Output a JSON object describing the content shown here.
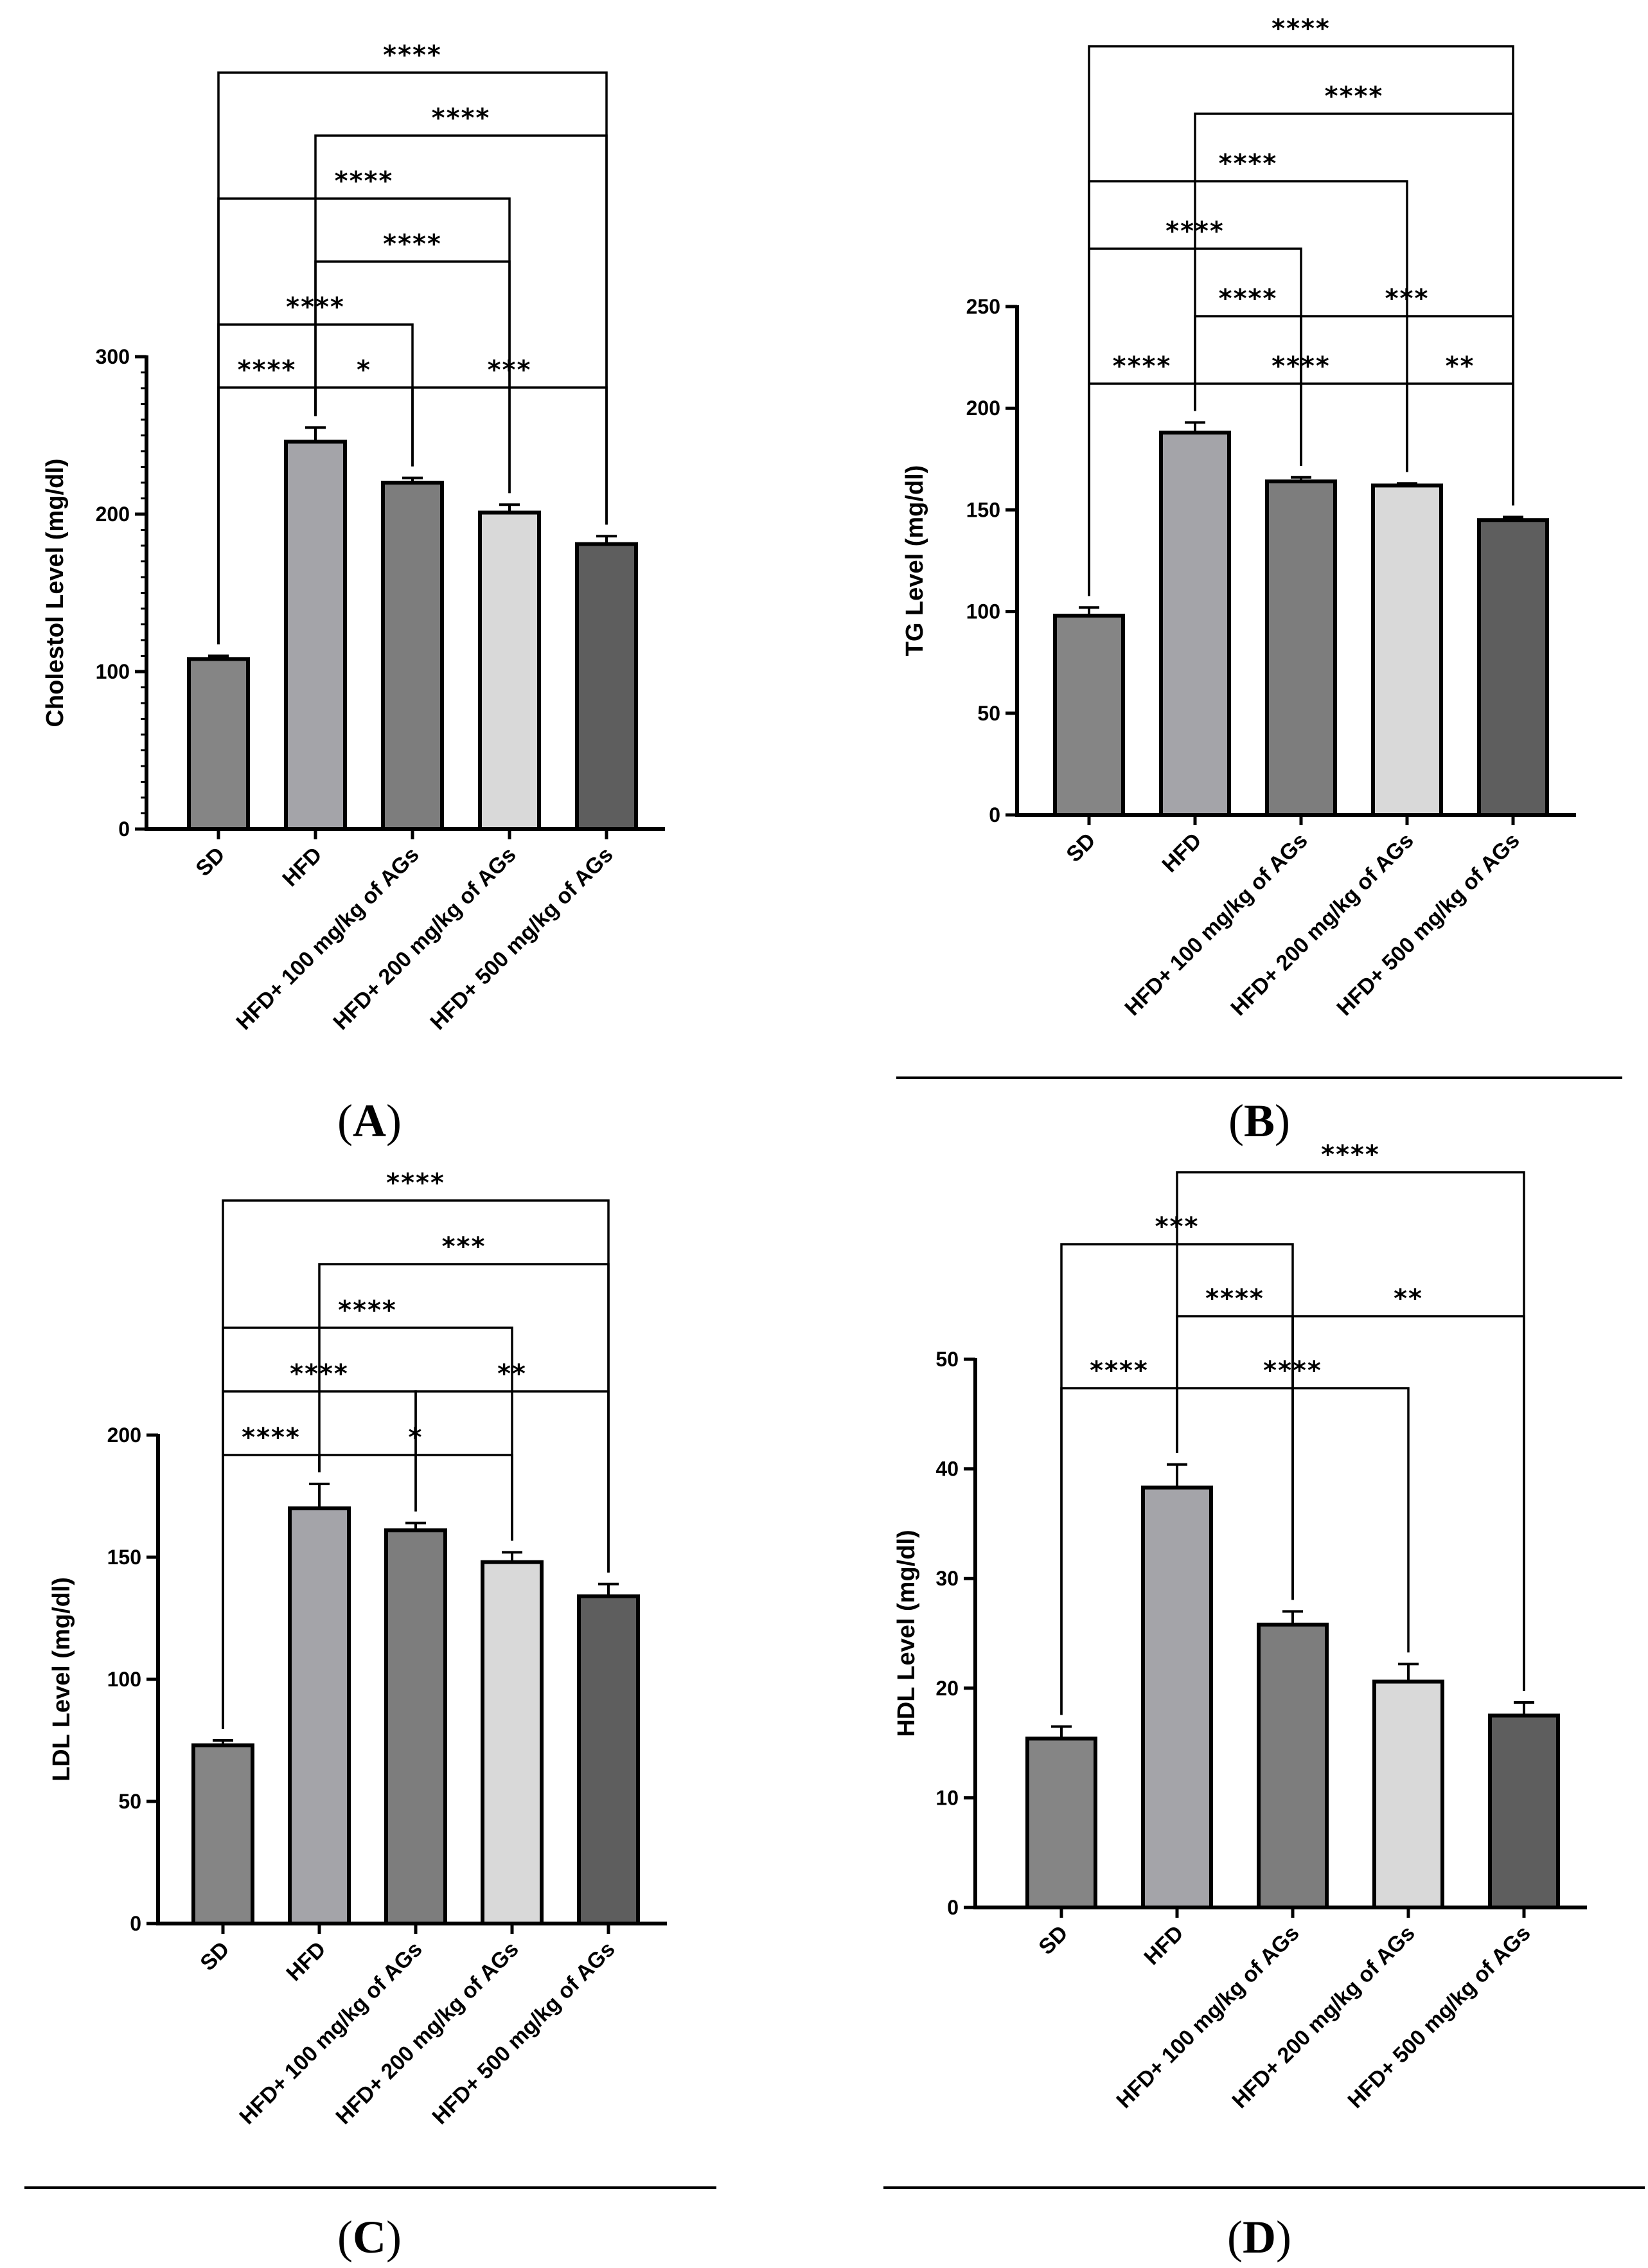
{
  "figure": {
    "panel_labels": [
      "A",
      "B",
      "C",
      "D"
    ]
  },
  "chart_data": [
    {
      "panel": "A",
      "type": "bar",
      "ylabel": "Cholestol Level (mg/dl)",
      "categories": [
        "SD",
        "HFD",
        "HFD+ 100 mg/kg of AGs",
        "HFD+ 200 mg/kg of AGs",
        "HFD+ 500 mg/kg of AGs"
      ],
      "values": [
        108,
        246,
        220,
        201,
        181
      ],
      "errors": [
        2,
        9,
        3,
        5,
        5
      ],
      "bar_colors": [
        "#858585",
        "#a4a4a9",
        "#7d7d7d",
        "#d9d9d9",
        "#5e5e5e"
      ],
      "ylim": [
        0,
        300
      ],
      "yticks": [
        0,
        100,
        200,
        300
      ],
      "minor_ticks": true,
      "comparisons": [
        {
          "from": 0,
          "to": 1,
          "label": "****"
        },
        {
          "from": 1,
          "to": 2,
          "label": "*"
        },
        {
          "from": 2,
          "to": 4,
          "label": "***"
        },
        {
          "from": 0,
          "to": 2,
          "label": "****"
        },
        {
          "from": 1,
          "to": 3,
          "label": "****"
        },
        {
          "from": 0,
          "to": 3,
          "label": "****"
        },
        {
          "from": 1,
          "to": 4,
          "label": "****"
        },
        {
          "from": 0,
          "to": 4,
          "label": "****"
        }
      ]
    },
    {
      "panel": "B",
      "type": "bar",
      "ylabel": "TG Level (mg/dl)",
      "categories": [
        "SD",
        "HFD",
        "HFD+ 100 mg/kg of AGs",
        "HFD+ 200 mg/kg of AGs",
        "HFD+ 500 mg/kg of AGs"
      ],
      "values": [
        98,
        188,
        164,
        162,
        145
      ],
      "errors": [
        4,
        5,
        2,
        1,
        1.5
      ],
      "bar_colors": [
        "#858585",
        "#a4a4a9",
        "#7d7d7d",
        "#d9d9d9",
        "#5e5e5e"
      ],
      "ylim": [
        0,
        250
      ],
      "yticks": [
        0,
        50,
        100,
        150,
        200,
        250
      ],
      "minor_ticks": false,
      "comparisons": [
        {
          "from": 0,
          "to": 1,
          "label": "****"
        },
        {
          "from": 1,
          "to": 3,
          "label": "****"
        },
        {
          "from": 3,
          "to": 4,
          "label": "**"
        },
        {
          "from": 1,
          "to": 2,
          "label": "****"
        },
        {
          "from": 2,
          "to": 4,
          "label": "***"
        },
        {
          "from": 0,
          "to": 2,
          "label": "****"
        },
        {
          "from": 0,
          "to": 3,
          "label": "****"
        },
        {
          "from": 1,
          "to": 4,
          "label": "****"
        },
        {
          "from": 0,
          "to": 4,
          "label": "****"
        }
      ]
    },
    {
      "panel": "C",
      "type": "bar",
      "ylabel": "LDL Level (mg/dl)",
      "categories": [
        "SD",
        "HFD",
        "HFD+ 100 mg/kg of AGs",
        "HFD+ 200 mg/kg of AGs",
        "HFD+ 500 mg/kg of AGs"
      ],
      "values": [
        73,
        170,
        161,
        148,
        134
      ],
      "errors": [
        2,
        10,
        3,
        4,
        5
      ],
      "bar_colors": [
        "#858585",
        "#a4a4a9",
        "#7d7d7d",
        "#d9d9d9",
        "#5e5e5e"
      ],
      "ylim": [
        0,
        200
      ],
      "yticks": [
        0,
        50,
        100,
        150,
        200
      ],
      "minor_ticks": false,
      "comparisons": [
        {
          "from": 0,
          "to": 1,
          "label": "****"
        },
        {
          "from": 1,
          "to": 3,
          "label": "*"
        },
        {
          "from": 0,
          "to": 2,
          "label": "****"
        },
        {
          "from": 2,
          "to": 4,
          "label": "**"
        },
        {
          "from": 0,
          "to": 3,
          "label": "****"
        },
        {
          "from": 1,
          "to": 4,
          "label": "***"
        },
        {
          "from": 0,
          "to": 4,
          "label": "****"
        }
      ]
    },
    {
      "panel": "D",
      "type": "bar",
      "ylabel": "HDL Level (mg/dl)",
      "categories": [
        "SD",
        "HFD",
        "HFD+ 100 mg/kg of AGs",
        "HFD+ 200 mg/kg of AGs",
        "HFD+ 500 mg/kg of AGs"
      ],
      "values": [
        15.4,
        38.3,
        25.8,
        20.6,
        17.5
      ],
      "errors": [
        1.1,
        2.1,
        1.2,
        1.6,
        1.2
      ],
      "bar_colors": [
        "#858585",
        "#a4a4a9",
        "#7d7d7d",
        "#d9d9d9",
        "#5e5e5e"
      ],
      "ylim": [
        0,
        50
      ],
      "yticks": [
        0,
        10,
        20,
        30,
        40,
        50
      ],
      "minor_ticks": false,
      "comparisons": [
        {
          "from": 0,
          "to": 1,
          "label": "****"
        },
        {
          "from": 1,
          "to": 3,
          "label": "****"
        },
        {
          "from": 1,
          "to": 2,
          "label": "****"
        },
        {
          "from": 2,
          "to": 4,
          "label": "**"
        },
        {
          "from": 0,
          "to": 2,
          "label": "***"
        },
        {
          "from": 1,
          "to": 4,
          "label": "****"
        }
      ]
    }
  ]
}
